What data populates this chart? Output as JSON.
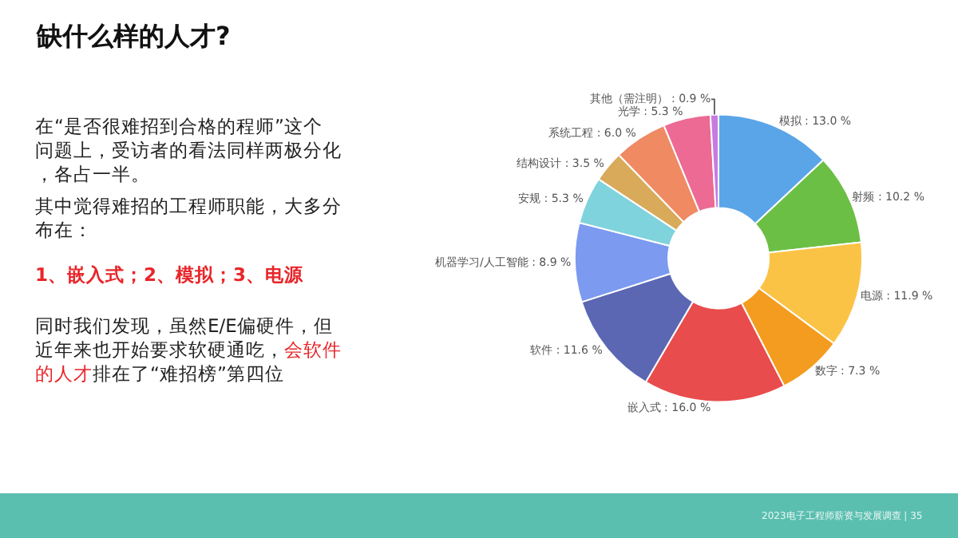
{
  "chart_data": {
    "type": "donut",
    "title": "缺什么样的人才?",
    "categories": [
      "模拟",
      "射频",
      "电源",
      "数字",
      "嵌入式",
      "软件",
      "机器学习/人工智能",
      "安规",
      "结构设计",
      "系统工程",
      "光学",
      "其他（需注明）"
    ],
    "values": [
      13.0,
      10.2,
      11.9,
      7.3,
      16.0,
      11.6,
      8.9,
      5.3,
      3.5,
      6.0,
      5.3,
      0.9
    ],
    "value_labels": [
      "13.0 %",
      "10.2 %",
      "11.9 %",
      "7.3 %",
      "16.0 %",
      "11.6 %",
      "8.9 %",
      "5.3 %",
      "3.5 %",
      "6.0 %",
      "5.3 %",
      "0.9 %"
    ],
    "colors": [
      "#5aa5e8",
      "#6cbf45",
      "#fbc346",
      "#f39c1f",
      "#e84c4c",
      "#5b67b3",
      "#7b9af0",
      "#7fd3dc",
      "#d8aa5a",
      "#ef8a62",
      "#ec6a93",
      "#c77be0"
    ],
    "legend": false,
    "annotations": [
      "在“是否很难招到合格的程师”这个问题上，受访者的看法同样两极分化，各占一半。",
      "其中觉得难招的工程师职能，大多分布在：",
      "1、嵌入式；2、模拟；3、电源",
      "同时我们发现，虽然E/E偏硬件，但近年来也开始要求软硬通吃，",
      "会软件的人才",
      "排在了“难招榜”第四位",
      "2023电子工程师薪资与发展调查 | 35"
    ]
  }
}
